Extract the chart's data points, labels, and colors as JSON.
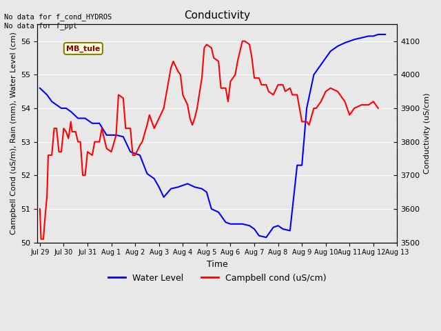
{
  "title": "Conductivity",
  "top_left_text": "No data for f_cond_HYDROS\nNo data for f_ppt",
  "label_box_text": "MB_tule",
  "ylabel_left": "Campbell Cond (uS/m), Rain (mm), Water Level (cm)",
  "ylabel_right": "Conductivity (uS/cm)",
  "xlabel": "Time",
  "ylim_left": [
    50.0,
    56.5
  ],
  "ylim_right": [
    3500,
    4150
  ],
  "background_color": "#e8e8e8",
  "plot_bg_color": "#e8e8e8",
  "water_level_color": "blue",
  "campbell_color": "red",
  "legend_entries": [
    "Water Level",
    "Campbell cond (uS/cm)"
  ],
  "xtick_labels": [
    "Jul 29",
    "Jul 30",
    "Jul 31",
    "Aug 1",
    "Aug 2",
    "Aug 3",
    "Aug 4",
    "Aug 5",
    "Aug 6",
    "Aug 7",
    "Aug 8",
    "Aug 9",
    "Aug 10",
    "Aug 11",
    "Aug 12",
    "Aug 13"
  ],
  "water_level_x": [
    0,
    0.15,
    0.3,
    0.5,
    0.7,
    0.9,
    1.1,
    1.3,
    1.6,
    1.9,
    2.2,
    2.5,
    2.8,
    3.0,
    3.2,
    3.5,
    3.8,
    4.0,
    4.2,
    4.5,
    4.8,
    5.0,
    5.2,
    5.5,
    5.8,
    6.0,
    6.2,
    6.5,
    6.8,
    7.0,
    7.2,
    7.5,
    7.8,
    8.0,
    8.2,
    8.5,
    8.8,
    9.0,
    9.2,
    9.5,
    9.8,
    10.0,
    10.2,
    10.5,
    10.8,
    11.0,
    11.2,
    11.5,
    11.8,
    12.0,
    12.2,
    12.5,
    12.8,
    13.0,
    13.2,
    13.5,
    13.8,
    14.0,
    14.2,
    14.5
  ],
  "water_level_y": [
    54.6,
    54.5,
    54.4,
    54.2,
    54.1,
    54.0,
    54.0,
    53.9,
    53.7,
    53.7,
    53.55,
    53.55,
    53.2,
    53.2,
    53.2,
    53.15,
    52.7,
    52.65,
    52.6,
    52.05,
    51.9,
    51.65,
    51.35,
    51.6,
    51.65,
    51.7,
    51.75,
    51.65,
    51.6,
    51.5,
    51.0,
    50.9,
    50.6,
    50.55,
    50.55,
    50.55,
    50.5,
    50.4,
    50.2,
    50.15,
    50.45,
    50.5,
    50.4,
    50.35,
    52.3,
    52.3,
    54.0,
    55.0,
    55.3,
    55.5,
    55.7,
    55.85,
    55.95,
    56.0,
    56.05,
    56.1,
    56.15,
    56.15,
    56.2,
    56.2
  ],
  "campbell_x": [
    0,
    0.05,
    0.15,
    0.2,
    0.3,
    0.35,
    0.5,
    0.6,
    0.7,
    0.8,
    0.9,
    1.0,
    1.1,
    1.2,
    1.3,
    1.35,
    1.5,
    1.6,
    1.7,
    1.8,
    1.9,
    2.0,
    2.2,
    2.3,
    2.5,
    2.6,
    2.8,
    3.0,
    3.2,
    3.3,
    3.5,
    3.6,
    3.8,
    3.9,
    4.0,
    4.2,
    4.3,
    4.5,
    4.6,
    4.8,
    5.0,
    5.2,
    5.3,
    5.5,
    5.6,
    5.8,
    5.9,
    6.0,
    6.2,
    6.3,
    6.4,
    6.5,
    6.6,
    6.8,
    6.9,
    7.0,
    7.2,
    7.3,
    7.5,
    7.6,
    7.8,
    7.9,
    8.0,
    8.2,
    8.3,
    8.5,
    8.6,
    8.8,
    8.9,
    9.0,
    9.2,
    9.3,
    9.5,
    9.6,
    9.8,
    10.0,
    10.2,
    10.3,
    10.5,
    10.6,
    10.8,
    11.0,
    11.2,
    11.3,
    11.5,
    11.6,
    11.8,
    12.0,
    12.2,
    12.5,
    12.8,
    13.0,
    13.2,
    13.5,
    13.8,
    14.0,
    14.2
  ],
  "campbell_y": [
    3600,
    3510,
    3510,
    3560,
    3640,
    3760,
    3760,
    3840,
    3840,
    3770,
    3770,
    3840,
    3830,
    3810,
    3860,
    3830,
    3830,
    3800,
    3800,
    3700,
    3700,
    3770,
    3760,
    3800,
    3800,
    3840,
    3780,
    3770,
    3820,
    3940,
    3930,
    3840,
    3840,
    3760,
    3760,
    3790,
    3800,
    3850,
    3880,
    3840,
    3870,
    3900,
    3940,
    4020,
    4040,
    4010,
    4000,
    3940,
    3910,
    3870,
    3850,
    3870,
    3900,
    3990,
    4080,
    4090,
    4080,
    4050,
    4040,
    3960,
    3960,
    3920,
    3980,
    4000,
    4040,
    4100,
    4100,
    4090,
    4050,
    3990,
    3990,
    3970,
    3970,
    3950,
    3940,
    3970,
    3970,
    3950,
    3960,
    3940,
    3940,
    3860,
    3860,
    3850,
    3900,
    3900,
    3920,
    3950,
    3960,
    3950,
    3920,
    3880,
    3900,
    3910,
    3910,
    3920,
    3900
  ]
}
